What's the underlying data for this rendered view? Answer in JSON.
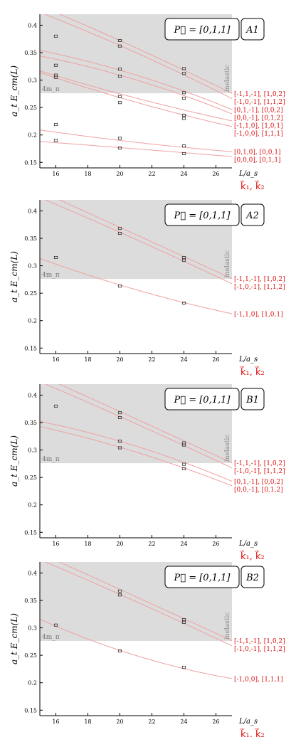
{
  "colors": {
    "curve": "#f0a0a0",
    "label": "#dd1111",
    "inelastic_band": "#dcdcdc",
    "point": "#333333",
    "axis": "#000000"
  },
  "axis_common": {
    "ylabel": "a_t E_cm(L)",
    "xlabel": "L/a_s",
    "xlim": [
      15,
      27
    ],
    "ylim": [
      0.14,
      0.42
    ],
    "xticks": [
      16,
      18,
      20,
      22,
      24,
      26
    ],
    "yticks": [
      0.15,
      0.2,
      0.25,
      0.3,
      0.35,
      0.4
    ],
    "threshold_label": "4m_π",
    "threshold_value": 0.276,
    "inelastic_label": "inelastic",
    "momentum_label": "k⃗₁, k⃗₂"
  },
  "chart_data": [
    {
      "type": "scatter",
      "momentum_title": "P⃗ = [0,1,1]",
      "irrep": "A1",
      "show_momentum_label": true,
      "points": [
        {
          "x": 16,
          "y": 0.38
        },
        {
          "x": 16,
          "y": 0.327
        },
        {
          "x": 16,
          "y": 0.309
        },
        {
          "x": 16,
          "y": 0.305
        },
        {
          "x": 16,
          "y": 0.219
        },
        {
          "x": 16,
          "y": 0.19
        },
        {
          "x": 20,
          "y": 0.372
        },
        {
          "x": 20,
          "y": 0.362
        },
        {
          "x": 20,
          "y": 0.32
        },
        {
          "x": 20,
          "y": 0.307
        },
        {
          "x": 20,
          "y": 0.27
        },
        {
          "x": 20,
          "y": 0.259
        },
        {
          "x": 20,
          "y": 0.194
        },
        {
          "x": 20,
          "y": 0.176
        },
        {
          "x": 24,
          "y": 0.321
        },
        {
          "x": 24,
          "y": 0.312
        },
        {
          "x": 24,
          "y": 0.277
        },
        {
          "x": 24,
          "y": 0.267
        },
        {
          "x": 24,
          "y": 0.236
        },
        {
          "x": 24,
          "y": 0.23
        },
        {
          "x": 24,
          "y": 0.18
        },
        {
          "x": 24,
          "y": 0.166
        }
      ],
      "curves": [
        {
          "label": "[-1,1,-1], [1,0,2]",
          "y16": 0.423,
          "y20": 0.372,
          "y26": 0.29
        },
        {
          "label": "[-1,0,-1], [1,1,2]",
          "y16": 0.412,
          "y20": 0.363,
          "y26": 0.281
        },
        {
          "label": "[0,1,-1], [0,0,2]",
          "y16": 0.348,
          "y20": 0.318,
          "y26": 0.258
        },
        {
          "label": "[0,0,-1], [0,1,2]",
          "y16": 0.338,
          "y20": 0.309,
          "y26": 0.25
        },
        {
          "label": "[-1,1,0], [1,0,1]",
          "y16": 0.308,
          "y20": 0.275,
          "y26": 0.232
        },
        {
          "label": "[-1,0,0], [1,1,1]",
          "y16": 0.304,
          "y20": 0.268,
          "y26": 0.222
        },
        {
          "label": "[0,1,0], [0,0,1]",
          "y16": 0.205,
          "y20": 0.19,
          "y26": 0.172
        },
        {
          "label": "[0,0,0], [0,1,1]",
          "y16": 0.186,
          "y20": 0.177,
          "y26": 0.163
        }
      ]
    },
    {
      "type": "scatter",
      "momentum_title": "P⃗ = [0,1,1]",
      "irrep": "A2",
      "show_momentum_label": true,
      "points": [
        {
          "x": 16,
          "y": 0.315
        },
        {
          "x": 20,
          "y": 0.368
        },
        {
          "x": 20,
          "y": 0.359
        },
        {
          "x": 20,
          "y": 0.263
        },
        {
          "x": 24,
          "y": 0.315
        },
        {
          "x": 24,
          "y": 0.31
        },
        {
          "x": 24,
          "y": 0.232
        }
      ],
      "curves": [
        {
          "label": "[-1,1,-1], [1,0,2]",
          "y16": 0.423,
          "y20": 0.37,
          "y26": 0.29
        },
        {
          "label": "[-1,0,-1], [1,1,2]",
          "y16": 0.412,
          "y20": 0.361,
          "y26": 0.281
        },
        {
          "label": "[-1,1,0], [1,0,1]",
          "y16": 0.303,
          "y20": 0.265,
          "y26": 0.219
        }
      ]
    },
    {
      "type": "scatter",
      "momentum_title": "P⃗ = [0,1,1]",
      "irrep": "B1",
      "show_momentum_label": true,
      "points": [
        {
          "x": 16,
          "y": 0.38
        },
        {
          "x": 20,
          "y": 0.368
        },
        {
          "x": 20,
          "y": 0.359
        },
        {
          "x": 20,
          "y": 0.316
        },
        {
          "x": 20,
          "y": 0.304
        },
        {
          "x": 24,
          "y": 0.313
        },
        {
          "x": 24,
          "y": 0.309
        },
        {
          "x": 24,
          "y": 0.274
        },
        {
          "x": 24,
          "y": 0.266
        }
      ],
      "curves": [
        {
          "label": "[-1,1,-1], [1,0,2]",
          "y16": 0.423,
          "y20": 0.37,
          "y26": 0.29
        },
        {
          "label": "[-1,0,-1], [1,1,2]",
          "y16": 0.412,
          "y20": 0.361,
          "y26": 0.281
        },
        {
          "label": "[0,1,-1], [0,0,2]",
          "y16": 0.346,
          "y20": 0.316,
          "y26": 0.255
        },
        {
          "label": "[0,0,-1], [0,1,2]",
          "y16": 0.336,
          "y20": 0.305,
          "y26": 0.246
        }
      ]
    },
    {
      "type": "scatter",
      "momentum_title": "P⃗ = [0,1,1]",
      "irrep": "B2",
      "show_momentum_label": true,
      "points": [
        {
          "x": 16,
          "y": 0.305
        },
        {
          "x": 20,
          "y": 0.367
        },
        {
          "x": 20,
          "y": 0.36
        },
        {
          "x": 20,
          "y": 0.258
        },
        {
          "x": 24,
          "y": 0.315
        },
        {
          "x": 24,
          "y": 0.31
        },
        {
          "x": 24,
          "y": 0.228
        }
      ],
      "curves": [
        {
          "label": "[-1,1,-1], [1,0,2]",
          "y16": 0.423,
          "y20": 0.37,
          "y26": 0.29
        },
        {
          "label": "[-1,0,-1], [1,1,2]",
          "y16": 0.412,
          "y20": 0.361,
          "y26": 0.281
        },
        {
          "label": "[-1,0,0], [1,1,1]",
          "y16": 0.303,
          "y20": 0.259,
          "y26": 0.213
        }
      ]
    }
  ]
}
